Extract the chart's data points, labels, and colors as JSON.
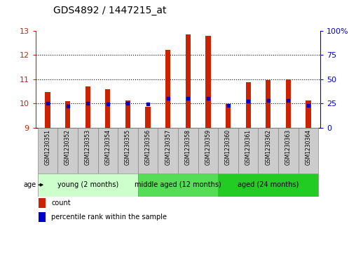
{
  "title": "GDS4892 / 1447215_at",
  "samples": [
    "GSM1230351",
    "GSM1230352",
    "GSM1230353",
    "GSM1230354",
    "GSM1230355",
    "GSM1230356",
    "GSM1230357",
    "GSM1230358",
    "GSM1230359",
    "GSM1230360",
    "GSM1230361",
    "GSM1230362",
    "GSM1230363",
    "GSM1230364"
  ],
  "count_values": [
    10.45,
    10.1,
    10.7,
    10.57,
    10.12,
    9.85,
    12.2,
    12.85,
    12.78,
    9.97,
    10.88,
    10.95,
    11.0,
    10.12
  ],
  "percentile_values": [
    25,
    22,
    25,
    24,
    25,
    24,
    30,
    30,
    30,
    23,
    27,
    28,
    28,
    23
  ],
  "ylim_left": [
    9,
    13
  ],
  "ylim_right": [
    0,
    100
  ],
  "yticks_left": [
    9,
    10,
    11,
    12,
    13
  ],
  "yticks_right": [
    0,
    25,
    50,
    75,
    100
  ],
  "ytick_right_labels": [
    "0",
    "25",
    "50",
    "75",
    "100%"
  ],
  "bar_color": "#cc2200",
  "dot_color": "#0000cc",
  "bar_bottom": 9,
  "bar_width": 0.25,
  "groups": [
    {
      "label": "young (2 months)",
      "start": 0,
      "end": 5,
      "color": "#ccffcc"
    },
    {
      "label": "middle aged (12 months)",
      "start": 5,
      "end": 9,
      "color": "#55dd55"
    },
    {
      "label": "aged (24 months)",
      "start": 9,
      "end": 14,
      "color": "#22cc22"
    }
  ],
  "group_label": "age",
  "legend_items": [
    {
      "label": "count",
      "color": "#cc2200"
    },
    {
      "label": "percentile rank within the sample",
      "color": "#0000cc"
    }
  ],
  "bg_color": "#ffffff",
  "sample_bg_color": "#cccccc",
  "title_fontsize": 10,
  "tick_fontsize": 8,
  "sample_fontsize": 5.5,
  "group_fontsize": 7,
  "legend_fontsize": 7
}
